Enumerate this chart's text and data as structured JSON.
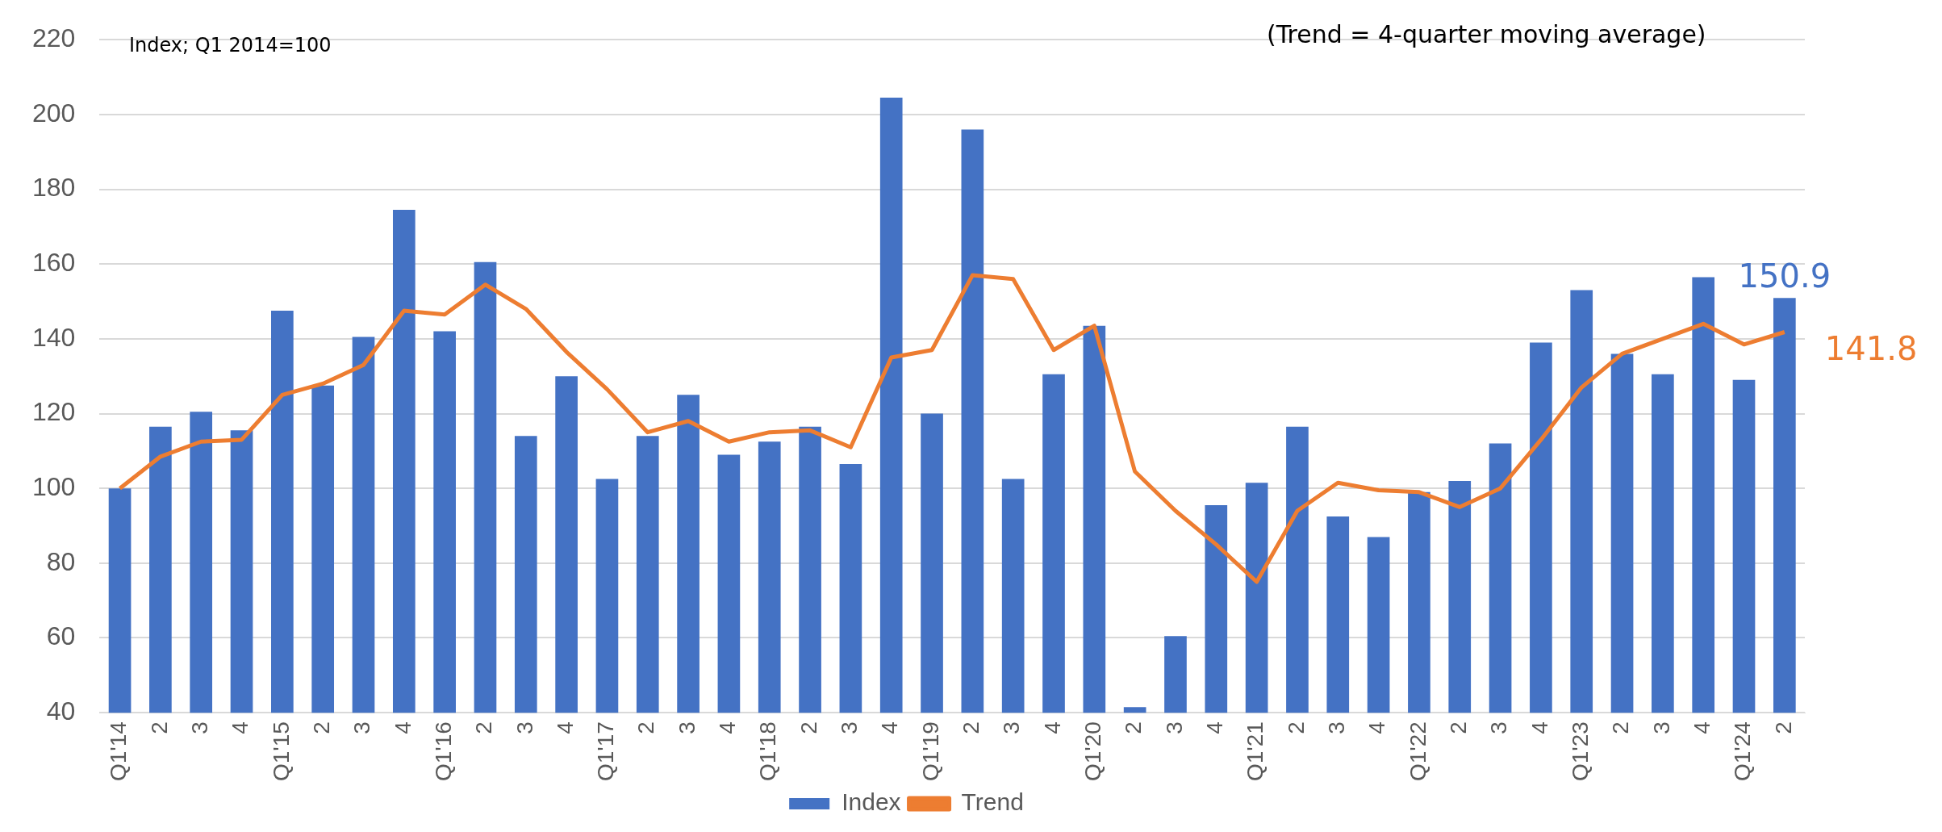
{
  "chart_data": {
    "type": "bar",
    "categories": [
      "Q1'14",
      "2",
      "3",
      "4",
      "Q1'15",
      "2",
      "3",
      "4",
      "Q1'16",
      "2",
      "3",
      "4",
      "Q1'17",
      "2",
      "3",
      "4",
      "Q1'18",
      "2",
      "3",
      "4",
      "Q1'19",
      "2",
      "3",
      "4",
      "Q1'20",
      "2",
      "3",
      "4",
      "Q1'21",
      "2",
      "3",
      "4",
      "Q1'22",
      "2",
      "3",
      "4",
      "Q1'23",
      "2",
      "3",
      "4",
      "Q1'24",
      "2"
    ],
    "series": [
      {
        "name": "Index",
        "color": "#4472c4",
        "values": [
          100,
          116.5,
          120.5,
          115.5,
          147.5,
          127.5,
          140.5,
          174.5,
          142,
          160.5,
          114,
          130,
          102.5,
          114,
          125,
          109,
          112.5,
          116.5,
          106.5,
          204.5,
          120,
          196,
          102.5,
          130.5,
          143.5,
          41.5,
          60.5,
          95.5,
          101.5,
          116.5,
          92.5,
          87,
          99,
          102,
          112,
          139,
          153,
          136,
          130.5,
          156.5,
          129,
          150.9
        ],
        "value_labels": [
          null,
          null,
          null,
          null,
          null,
          null,
          null,
          null,
          null,
          null,
          null,
          null,
          null,
          null,
          null,
          null,
          null,
          null,
          null,
          null,
          null,
          null,
          null,
          null,
          null,
          null,
          null,
          null,
          null,
          null,
          null,
          null,
          null,
          null,
          null,
          null,
          null,
          null,
          null,
          null,
          null,
          "150.9"
        ]
      },
      {
        "name": "Trend",
        "type": "line",
        "color": "#ed7d31",
        "values": [
          100,
          108.5,
          112.5,
          113,
          125,
          128,
          133,
          147.5,
          146.5,
          154.5,
          148,
          136.5,
          126.5,
          115,
          118,
          112.5,
          115,
          115.5,
          111,
          135,
          137,
          157,
          156,
          137,
          143.5,
          104.5,
          94,
          85,
          75,
          94,
          101.5,
          99.5,
          99,
          95,
          100,
          113,
          127,
          136,
          140,
          144,
          138.5,
          141.8
        ],
        "value_labels": [
          null,
          null,
          null,
          null,
          null,
          null,
          null,
          null,
          null,
          null,
          null,
          null,
          null,
          null,
          null,
          null,
          null,
          null,
          null,
          null,
          null,
          null,
          null,
          null,
          null,
          null,
          null,
          null,
          null,
          null,
          null,
          null,
          null,
          null,
          null,
          null,
          null,
          null,
          null,
          null,
          null,
          "141.8"
        ]
      }
    ],
    "ylim": [
      40,
      220
    ],
    "yticks": [
      40,
      60,
      80,
      100,
      120,
      140,
      160,
      180,
      200,
      220
    ],
    "grid": "y",
    "legend": "bottom",
    "marker": "none",
    "line_style": "solid",
    "annotations": [
      "Index; Q1 2014=100",
      "(Trend = 4-quarter moving average)"
    ]
  }
}
